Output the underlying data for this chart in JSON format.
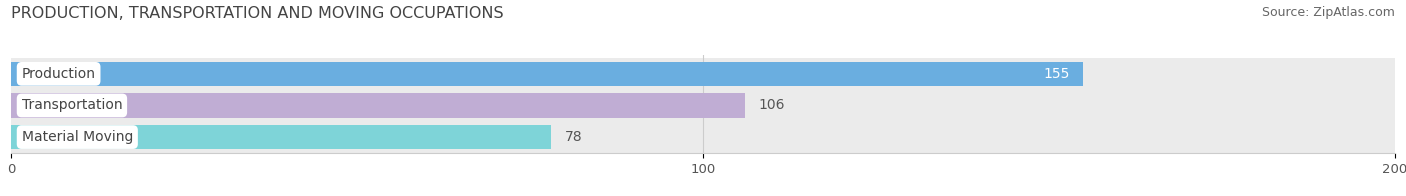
{
  "title": "PRODUCTION, TRANSPORTATION AND MOVING OCCUPATIONS",
  "source": "Source: ZipAtlas.com",
  "categories": [
    "Production",
    "Transportation",
    "Material Moving"
  ],
  "values": [
    155,
    106,
    78
  ],
  "bar_colors": [
    "#6aaee0",
    "#c0add4",
    "#7ed4d8"
  ],
  "xlim": [
    0,
    200
  ],
  "xticks": [
    0,
    100,
    200
  ],
  "title_fontsize": 11.5,
  "source_fontsize": 9,
  "label_fontsize": 10,
  "value_fontsize": 10,
  "bar_height": 0.78,
  "background_color": "#ffffff",
  "row_bg_color": "#ebebeb",
  "tick_label_color": "#555555",
  "title_color": "#444444",
  "grid_color": "#cccccc"
}
